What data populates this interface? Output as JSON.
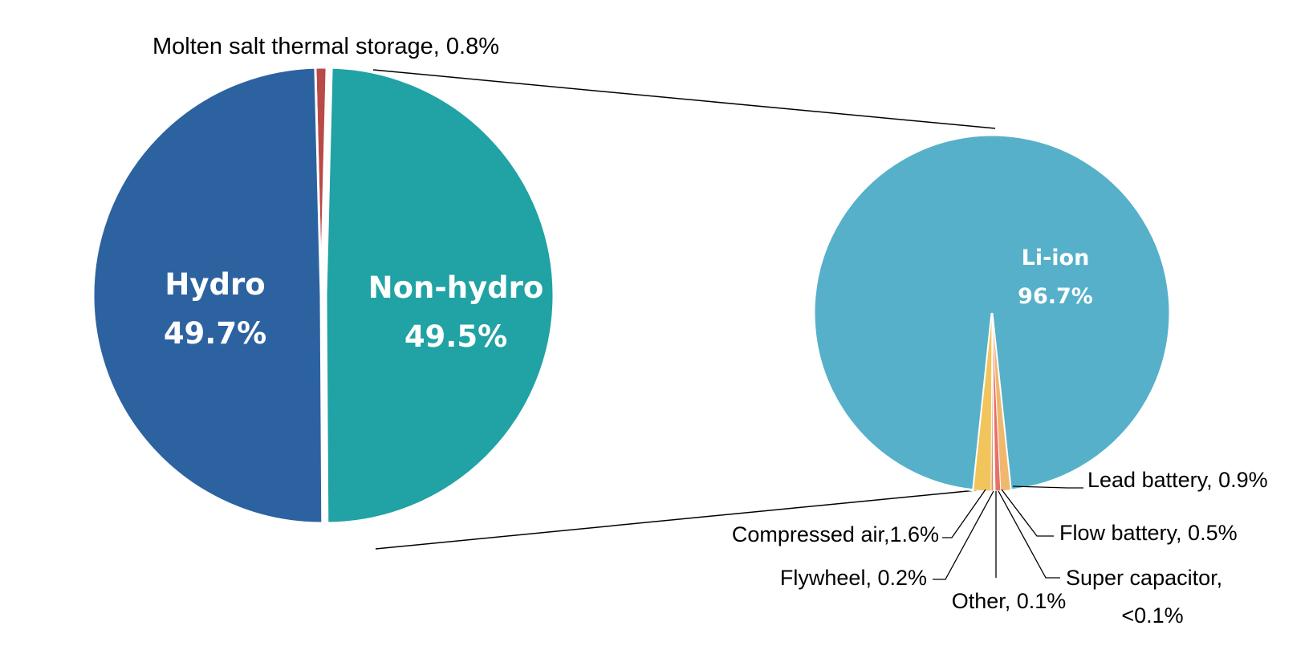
{
  "chart_data": [
    {
      "type": "pie",
      "slices": [
        {
          "name": "Hydro",
          "value": 49.7,
          "value_label": "49.7%",
          "color": "#2d62a0"
        },
        {
          "name": "Non-hydro",
          "value": 49.5,
          "value_label": "49.5%",
          "color": "#21a2a4"
        },
        {
          "name": "Molten salt thermal storage",
          "value": 0.8,
          "label": "Molten salt thermal storage, 0.8%",
          "color": "#b94a48"
        }
      ],
      "exploded_slice": "Non-hydro"
    },
    {
      "type": "pie",
      "slices": [
        {
          "name": "Li-ion",
          "value": 96.7,
          "value_label": "96.7%",
          "color": "#56b0ca"
        },
        {
          "name": "Lead battery",
          "value": 0.9,
          "label": "Lead battery, 0.9%",
          "color": "#f0b86e"
        },
        {
          "name": "Flow battery",
          "value": 0.5,
          "label": "Flow battery, 0.5%",
          "color": "#e8706a"
        },
        {
          "name": "Super capacitor",
          "value": 0.05,
          "label_line1": "Super capacitor,",
          "label_line2": "<0.1%",
          "color": "#c9c9c9"
        },
        {
          "name": "Other",
          "value": 0.1,
          "label": "Other, 0.1%",
          "color": "#9bd0c2"
        },
        {
          "name": "Flywheel",
          "value": 0.2,
          "label": "Flywheel, 0.2%",
          "color": "#d98c5b"
        },
        {
          "name": "Compressed air",
          "value": 1.6,
          "label": "Compressed air,1.6%",
          "color": "#f2c55c"
        }
      ]
    }
  ]
}
